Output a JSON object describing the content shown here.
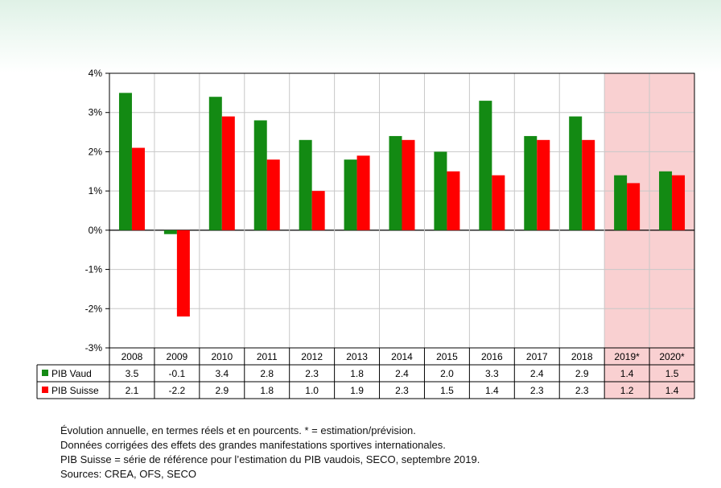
{
  "chart_data": {
    "type": "bar",
    "categories": [
      "2008",
      "2009",
      "2010",
      "2011",
      "2012",
      "2013",
      "2014",
      "2015",
      "2016",
      "2017",
      "2018",
      "2019*",
      "2020*"
    ],
    "series": [
      {
        "name": "PIB Vaud",
        "color": "#138a13",
        "values": [
          3.5,
          -0.1,
          3.4,
          2.8,
          2.3,
          1.8,
          2.4,
          2.0,
          3.3,
          2.4,
          2.9,
          1.4,
          1.5
        ],
        "labels": [
          "3.5",
          "-0.1",
          "3.4",
          "2.8",
          "2.3",
          "1.8",
          "2.4",
          "2.0",
          "3.3",
          "2.4",
          "2.9",
          "1.4",
          "1.5"
        ]
      },
      {
        "name": "PIB Suisse",
        "color": "#ff0000",
        "values": [
          2.1,
          -2.2,
          2.9,
          1.8,
          1.0,
          1.9,
          2.3,
          1.5,
          1.4,
          2.3,
          2.3,
          1.2,
          1.4
        ],
        "labels": [
          "2.1",
          "-2.2",
          "2.9",
          "1.8",
          "1.0",
          "1.9",
          "2.3",
          "1.5",
          "1.4",
          "2.3",
          "2.3",
          "1.2",
          "1.4"
        ]
      }
    ],
    "ylim": [
      -3,
      4
    ],
    "yticks": [
      4,
      3,
      2,
      1,
      0,
      -1,
      -2,
      -3
    ],
    "ytick_labels": [
      "4%",
      "3%",
      "2%",
      "1%",
      "0%",
      "-1%",
      "-2%",
      "-3%"
    ],
    "estimate_categories": [
      "2019*",
      "2020*"
    ],
    "estimate_shade_color": "#f9d0d1",
    "grid": true,
    "legend": "data-table-left"
  },
  "notes": [
    "Évolution annuelle, en termes réels et en pourcents. * = estimation/prévision.",
    "Données corrigées des effets des grandes manifestations sportives internationales.",
    "PIB Suisse = série de référence pour l’estimation du PIB vaudois, SECO, septembre 2019.",
    "Sources: CREA, OFS, SECO"
  ]
}
